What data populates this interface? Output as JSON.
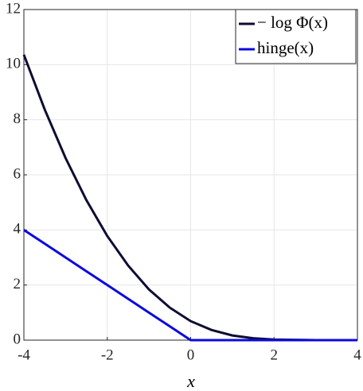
{
  "chart_data": {
    "type": "line",
    "x": [
      -4,
      -3.5,
      -3,
      -2.5,
      -2,
      -1.5,
      -1,
      -0.5,
      0,
      0.5,
      1,
      1.5,
      2,
      2.5,
      3,
      3.5,
      4
    ],
    "series": [
      {
        "name": "− log Φ(x)",
        "color": "#0d0d33",
        "values": [
          10.36,
          8.37,
          6.61,
          5.08,
          3.78,
          2.71,
          1.84,
          1.18,
          0.69,
          0.37,
          0.17,
          0.07,
          0.02,
          0.01,
          0,
          0,
          0
        ]
      },
      {
        "name": "hinge(x)",
        "color": "#0a0ae0",
        "values": [
          4,
          3.5,
          3,
          2.5,
          2,
          1.5,
          1,
          0.5,
          0,
          0,
          0,
          0,
          0,
          0,
          0,
          0,
          0
        ]
      }
    ],
    "xlabel": "x",
    "xlim": [
      -4,
      4
    ],
    "xticks": [
      -4,
      -2,
      0,
      2,
      4
    ],
    "ylim": [
      0,
      12
    ],
    "yticks": [
      0,
      2,
      4,
      6,
      8,
      10,
      12
    ],
    "grid": true,
    "legend": "top-right"
  }
}
